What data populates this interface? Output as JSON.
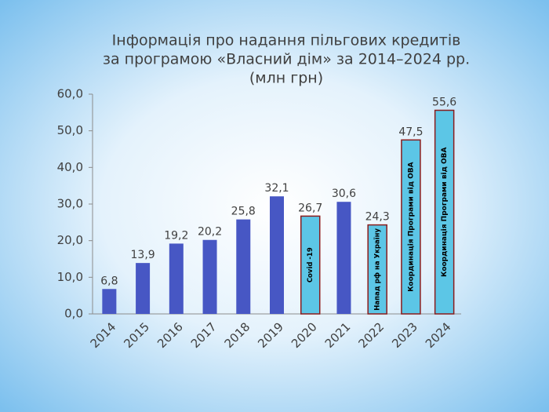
{
  "chart_data": {
    "type": "bar",
    "title": [
      "Інформація про надання пільгових кредитів",
      "за програмою «Власний дім» за 2014–2024 рр.",
      "(млн грн)"
    ],
    "categories": [
      "2014",
      "2015",
      "2016",
      "2017",
      "2018",
      "2019",
      "2020",
      "2021",
      "2022",
      "2023",
      "2024"
    ],
    "values": [
      6.8,
      13.9,
      19.2,
      20.2,
      25.8,
      32.1,
      26.7,
      30.6,
      24.3,
      47.5,
      55.6
    ],
    "value_labels": [
      "6,8",
      "13,9",
      "19,2",
      "20,2",
      "25,8",
      "32,1",
      "26,7",
      "30,6",
      "24,3",
      "47,5",
      "55,6"
    ],
    "bar_annotations": [
      null,
      null,
      null,
      null,
      null,
      null,
      "Covid -19",
      null,
      "Напад рф на Україну",
      "Координація Програми від ОВА",
      "Координація Програми від ОВА"
    ],
    "colors": [
      "#4757c4",
      "#4757c4",
      "#4757c4",
      "#4757c4",
      "#4757c4",
      "#4757c4",
      "#5cc6e6",
      "#4757c4",
      "#5cc6e6",
      "#5cc6e6",
      "#5cc6e6"
    ],
    "highlight_border": "#8a1c1c",
    "ylim": [
      0,
      60
    ],
    "yticks": [
      {
        "value": 0,
        "label": "0,0"
      },
      {
        "value": 10,
        "label": "10,0"
      },
      {
        "value": 20,
        "label": "20,0"
      },
      {
        "value": 30,
        "label": "30,0"
      },
      {
        "value": 40,
        "label": "40,0"
      },
      {
        "value": 50,
        "label": "50,0"
      },
      {
        "value": 60,
        "label": "60,0"
      }
    ],
    "grid": false
  }
}
